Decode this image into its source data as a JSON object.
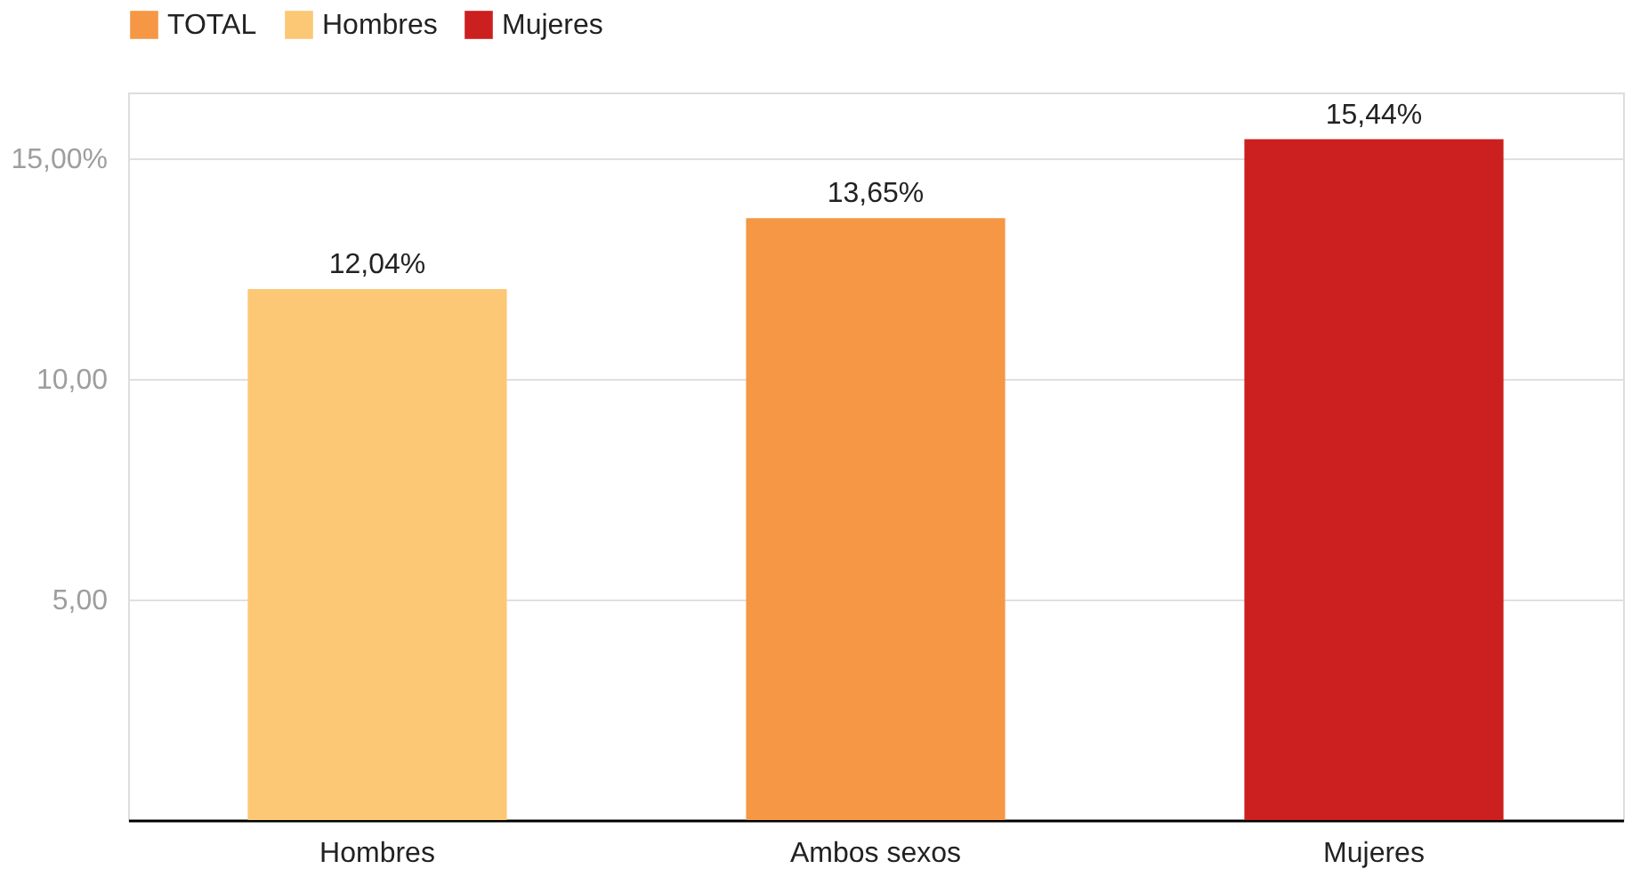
{
  "chart_data": {
    "type": "bar",
    "categories": [
      "Hombres",
      "Ambos sexos",
      "Mujeres"
    ],
    "series": [
      {
        "name": "TOTAL",
        "color": "#f59744",
        "values": [
          null,
          13.65,
          null
        ],
        "value_labels": [
          null,
          "13,65%",
          null
        ]
      },
      {
        "name": "Hombres",
        "color": "#fcc875",
        "values": [
          12.04,
          null,
          null
        ],
        "value_labels": [
          "12,04%",
          null,
          null
        ]
      },
      {
        "name": "Mujeres",
        "color": "#cc1f1f",
        "values": [
          null,
          null,
          15.44
        ],
        "value_labels": [
          null,
          null,
          "15,44%"
        ]
      }
    ],
    "ylim": [
      0,
      16.5
    ],
    "yticks": [
      {
        "value": 5,
        "label": "5,00"
      },
      {
        "value": 10,
        "label": "10,00"
      },
      {
        "value": 15,
        "label": "15,00%"
      }
    ],
    "grid": "y",
    "legend": "top left"
  }
}
